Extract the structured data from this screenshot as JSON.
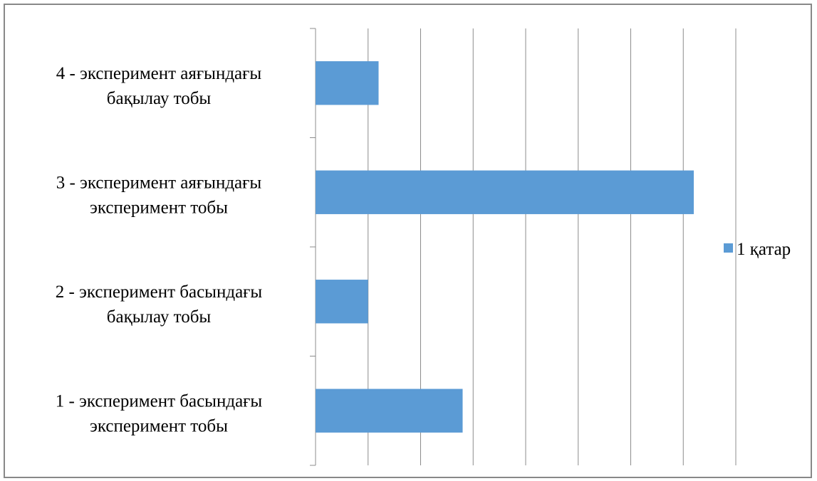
{
  "chart_data": {
    "type": "bar",
    "orientation": "horizontal",
    "categories": [
      {
        "line1": "1 - эксперимент басындағы",
        "line2": "эксперимент тобы"
      },
      {
        "line1": "2 - эксперимент басындағы",
        "line2": "бақылау тобы"
      },
      {
        "line1": "3 - эксперимент аяғындағы",
        "line2": "эксперимент тобы"
      },
      {
        "line1": "4 - эксперимент аяғындағы",
        "line2": "бақылау тобы"
      }
    ],
    "series": [
      {
        "name": "1 қатар",
        "color": "#5B9BD5",
        "values": [
          2.8,
          1.0,
          7.2,
          1.2
        ]
      }
    ],
    "xlim": [
      0,
      8
    ],
    "x_gridlines": true,
    "x_tick_labels_shown": false,
    "title": "",
    "xlabel": "",
    "ylabel": "",
    "legend_position": "right"
  }
}
